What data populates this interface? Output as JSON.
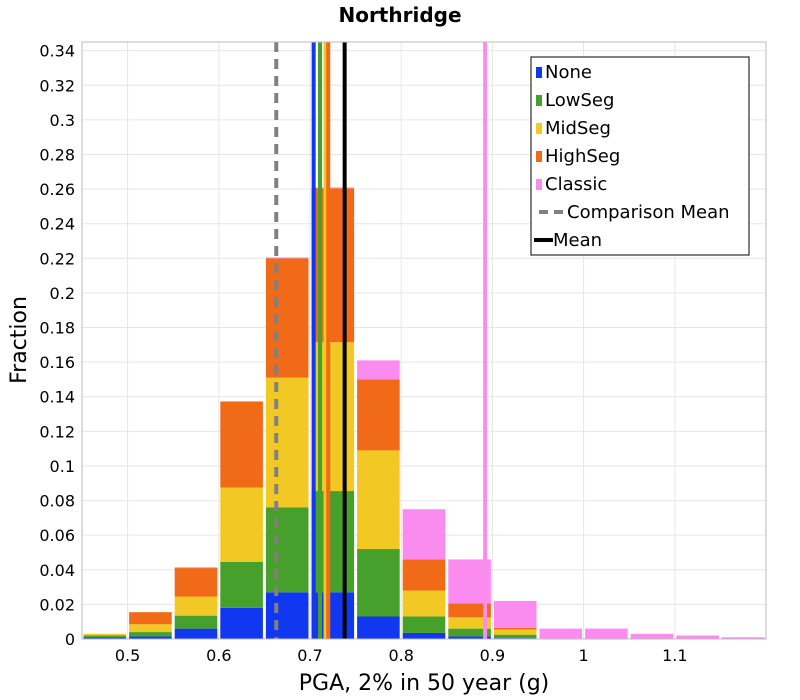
{
  "chart_data": {
    "type": "bar",
    "stacked": true,
    "title": "Northridge",
    "xlabel": "PGA, 2% in 50 year (g)",
    "ylabel": "Fraction",
    "xlim": [
      0.45,
      1.2
    ],
    "ylim": [
      0,
      0.345
    ],
    "xticks": [
      "0.5",
      "0.6",
      "0.7",
      "0.8",
      "0.9",
      "1",
      "1.1"
    ],
    "yticks": [
      "0",
      "0.02",
      "0.04",
      "0.06",
      "0.08",
      "0.1",
      "0.12",
      "0.14",
      "0.16",
      "0.18",
      "0.2",
      "0.22",
      "0.24",
      "0.26",
      "0.28",
      "0.3",
      "0.32",
      "0.34"
    ],
    "grid": true,
    "bin_width": 0.05,
    "bin_centers": [
      0.475,
      0.525,
      0.575,
      0.625,
      0.675,
      0.725,
      0.775,
      0.825,
      0.875,
      0.925,
      0.975,
      1.025,
      1.075,
      1.125,
      1.175
    ],
    "series": [
      {
        "name": "None",
        "color": "#1138f0",
        "values": [
          0.001,
          0.0015,
          0.006,
          0.018,
          0.027,
          0.027,
          0.013,
          0.0035,
          0.0015,
          0.0005,
          0,
          0,
          0,
          0,
          0
        ]
      },
      {
        "name": "LowSeg",
        "color": "#46a02b",
        "values": [
          0.001,
          0.0025,
          0.0075,
          0.0265,
          0.049,
          0.0585,
          0.039,
          0.0095,
          0.0045,
          0.002,
          0,
          0,
          0,
          0,
          0
        ]
      },
      {
        "name": "MidSeg",
        "color": "#f2c924",
        "values": [
          0.001,
          0.0045,
          0.011,
          0.043,
          0.075,
          0.086,
          0.057,
          0.015,
          0.0065,
          0.003,
          0,
          0,
          0,
          0,
          0
        ]
      },
      {
        "name": "HighSeg",
        "color": "#f06a18",
        "values": [
          0,
          0.007,
          0.0165,
          0.0495,
          0.069,
          0.089,
          0.041,
          0.018,
          0.008,
          0.001,
          0,
          0,
          0,
          0,
          0
        ]
      },
      {
        "name": "Classic",
        "color": "#fa8cf0",
        "values": [
          0,
          0,
          0.0005,
          0.0005,
          0.0005,
          0.0005,
          0.011,
          0.029,
          0.0255,
          0.0155,
          0.006,
          0.006,
          0.003,
          0.002,
          0.001
        ]
      }
    ],
    "vertical_lines": [
      {
        "name": "None",
        "x": 0.704,
        "color": "#1138f0",
        "style": "solid"
      },
      {
        "name": "LowSeg",
        "x": 0.711,
        "color": "#46a02b",
        "style": "solid"
      },
      {
        "name": "MidSeg",
        "x": 0.717,
        "color": "#f2c924",
        "style": "solid"
      },
      {
        "name": "HighSeg",
        "x": 0.72,
        "color": "#f06a18",
        "style": "solid"
      },
      {
        "name": "Classic",
        "x": 0.892,
        "color": "#fa8cf0",
        "style": "solid"
      },
      {
        "name": "Comparison Mean",
        "x": 0.663,
        "color": "#808080",
        "style": "dashed"
      },
      {
        "name": "Mean",
        "x": 0.738,
        "color": "#000000",
        "style": "solid"
      }
    ],
    "legend": {
      "position": "top-right",
      "entries": [
        {
          "label": "None",
          "color": "#1138f0",
          "kind": "box"
        },
        {
          "label": "LowSeg",
          "color": "#46a02b",
          "kind": "box"
        },
        {
          "label": "MidSeg",
          "color": "#f2c924",
          "kind": "box"
        },
        {
          "label": "HighSeg",
          "color": "#f06a18",
          "kind": "box"
        },
        {
          "label": "Classic",
          "color": "#fa8cf0",
          "kind": "box"
        },
        {
          "label": "Comparison Mean",
          "color": "#808080",
          "kind": "dashed"
        },
        {
          "label": "Mean",
          "color": "#000000",
          "kind": "line"
        }
      ]
    }
  }
}
